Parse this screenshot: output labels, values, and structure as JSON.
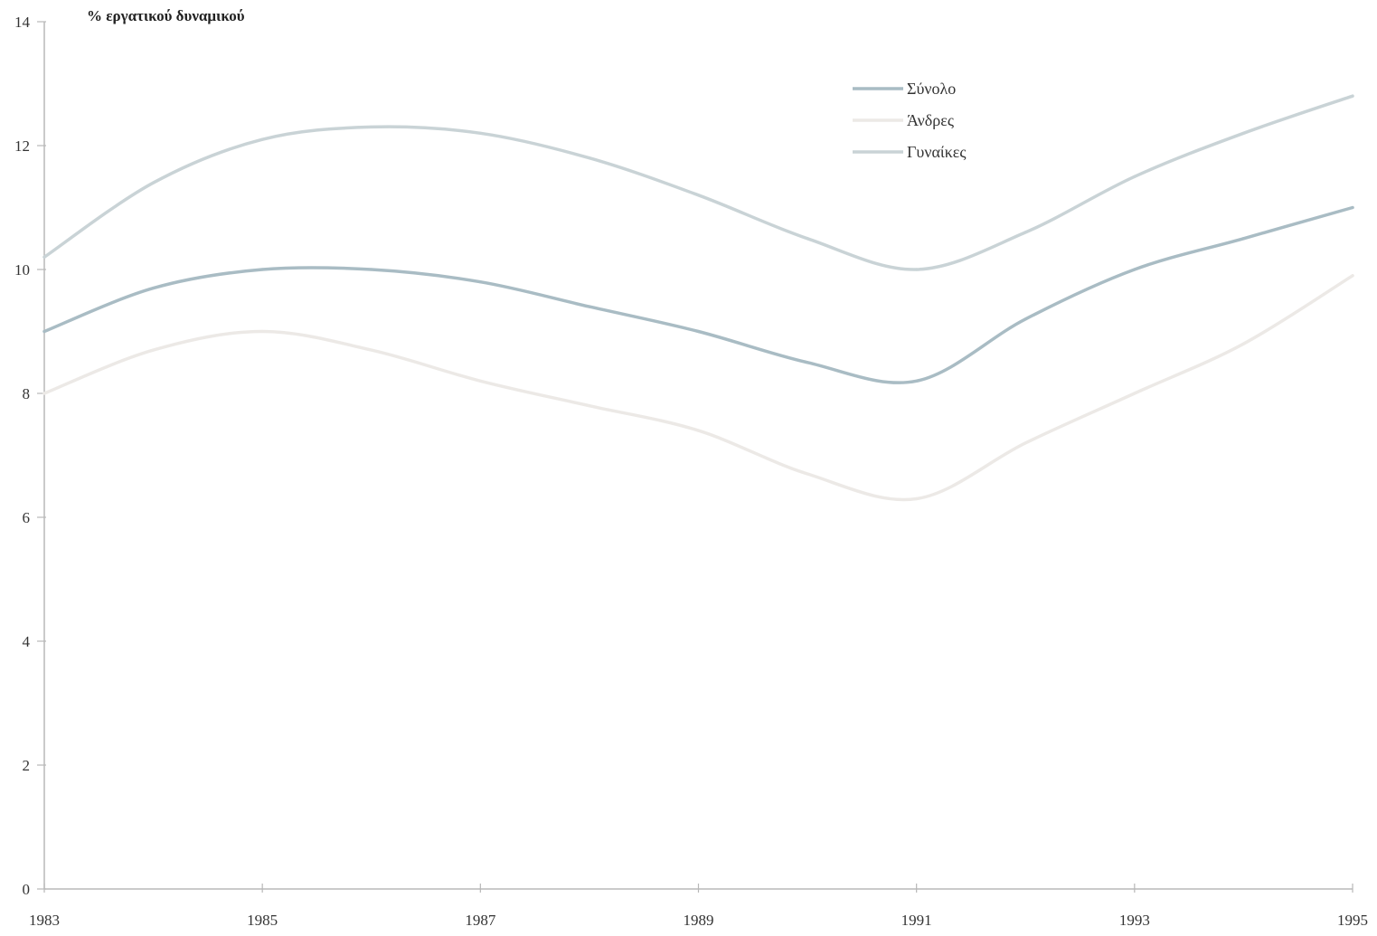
{
  "chart_data": {
    "type": "line",
    "title": "",
    "ylabel": "% εργατικού δυναμικού",
    "xlabel": "",
    "x": [
      1983,
      1984,
      1985,
      1986,
      1987,
      1988,
      1989,
      1990,
      1991,
      1992,
      1993,
      1994,
      1995
    ],
    "xticks": [
      "1983",
      "1985",
      "1987",
      "1989",
      "1991",
      "1993",
      "1995"
    ],
    "yticks": [
      "0",
      "2",
      "4",
      "6",
      "8",
      "10",
      "12",
      "14"
    ],
    "ylim": [
      0,
      14
    ],
    "xlim": [
      1983,
      1995
    ],
    "grid": false,
    "legend_position": "top-right",
    "series": [
      {
        "name": "Σύνολο",
        "color": "#a9bcc4",
        "values": [
          9.0,
          9.7,
          10.0,
          10.0,
          9.8,
          9.4,
          9.0,
          8.5,
          8.2,
          9.2,
          10.0,
          10.5,
          11.0
        ]
      },
      {
        "name": "Άνδρες",
        "color": "#ece9e6",
        "values": [
          8.0,
          8.7,
          9.0,
          8.7,
          8.2,
          7.8,
          7.4,
          6.7,
          6.3,
          7.2,
          8.0,
          8.8,
          9.9
        ]
      },
      {
        "name": "Γυναίκες",
        "color": "#c9d3d6",
        "values": [
          10.2,
          11.4,
          12.1,
          12.3,
          12.2,
          11.8,
          11.2,
          10.5,
          10.0,
          10.6,
          11.5,
          12.2,
          12.8
        ]
      }
    ]
  }
}
